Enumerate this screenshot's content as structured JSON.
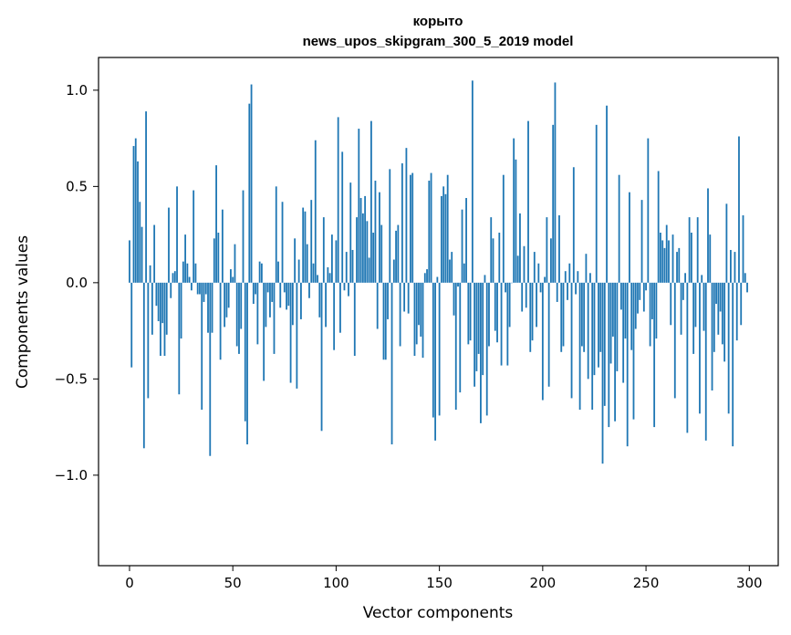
{
  "chart_data": {
    "type": "bar",
    "title": "корыто",
    "subtitle": "news_upos_skipgram_300_5_2019 model",
    "xlabel": "Vector components",
    "ylabel": "Components values",
    "xlim": [
      -15,
      314
    ],
    "ylim": [
      -1.47,
      1.17
    ],
    "xticks": [
      0,
      50,
      100,
      150,
      200,
      250,
      300
    ],
    "yticks": [
      -1.0,
      -0.5,
      0.0,
      0.5,
      1.0
    ],
    "ytick_labels": [
      "−1.0",
      "−0.5",
      "0.0",
      "0.5",
      "1.0"
    ],
    "bar_color": "#1f77b4",
    "grid": false,
    "values": [
      0.22,
      -0.44,
      0.71,
      0.75,
      0.63,
      0.42,
      0.29,
      -0.86,
      0.89,
      -0.6,
      0.09,
      -0.27,
      0.3,
      -0.12,
      -0.2,
      -0.38,
      -0.21,
      -0.38,
      -0.27,
      0.39,
      -0.08,
      0.05,
      0.06,
      0.5,
      -0.58,
      -0.29,
      0.11,
      0.25,
      0.1,
      0.03,
      -0.04,
      0.48,
      0.1,
      -0.06,
      -0.06,
      -0.66,
      -0.1,
      -0.06,
      -0.26,
      -0.9,
      -0.26,
      0.23,
      0.61,
      0.26,
      -0.4,
      0.38,
      -0.23,
      -0.18,
      -0.13,
      0.07,
      0.03,
      0.2,
      -0.33,
      -0.37,
      -0.24,
      0.48,
      -0.72,
      -0.84,
      0.93,
      1.03,
      -0.11,
      -0.06,
      -0.32,
      0.11,
      0.1,
      -0.51,
      -0.23,
      -0.05,
      -0.18,
      -0.1,
      -0.37,
      0.5,
      0.11,
      -0.13,
      0.42,
      -0.05,
      -0.14,
      -0.12,
      -0.52,
      -0.22,
      0.23,
      -0.55,
      0.12,
      -0.19,
      0.39,
      0.37,
      0.2,
      -0.08,
      0.43,
      0.1,
      0.74,
      0.04,
      -0.18,
      -0.77,
      0.34,
      -0.23,
      0.08,
      0.05,
      0.25,
      -0.35,
      0.22,
      0.86,
      -0.26,
      0.68,
      -0.04,
      0.16,
      -0.07,
      0.52,
      0.17,
      -0.38,
      0.34,
      0.8,
      0.44,
      0.36,
      0.45,
      0.32,
      0.13,
      0.84,
      0.26,
      0.53,
      -0.24,
      0.47,
      0.3,
      -0.4,
      -0.4,
      -0.19,
      0.59,
      -0.84,
      0.12,
      0.27,
      0.3,
      -0.33,
      0.62,
      -0.15,
      0.7,
      -0.16,
      0.56,
      0.57,
      -0.38,
      -0.32,
      -0.22,
      -0.28,
      -0.39,
      0.05,
      0.07,
      0.53,
      0.57,
      -0.7,
      -0.82,
      0.03,
      -0.69,
      0.45,
      0.5,
      0.46,
      0.56,
      0.12,
      0.16,
      -0.17,
      -0.66,
      -0.02,
      -0.57,
      0.38,
      0.1,
      0.44,
      -0.32,
      -0.3,
      1.05,
      -0.54,
      -0.46,
      -0.37,
      -0.73,
      -0.48,
      0.04,
      -0.69,
      -0.33,
      0.34,
      0.23,
      -0.25,
      -0.31,
      0.26,
      -0.43,
      0.56,
      -0.05,
      -0.43,
      -0.23,
      0.0,
      0.75,
      0.64,
      0.14,
      0.36,
      -0.15,
      0.19,
      -0.13,
      0.84,
      -0.36,
      -0.3,
      0.16,
      -0.23,
      0.1,
      -0.05,
      -0.61,
      0.03,
      0.34,
      -0.54,
      0.23,
      0.82,
      1.04,
      -0.1,
      0.35,
      -0.36,
      -0.33,
      0.06,
      -0.09,
      0.1,
      -0.6,
      0.6,
      -0.06,
      0.06,
      -0.66,
      -0.33,
      -0.36,
      0.15,
      -0.5,
      0.05,
      -0.66,
      -0.48,
      0.82,
      -0.44,
      -0.36,
      -0.94,
      -0.64,
      0.92,
      -0.75,
      -0.42,
      -0.28,
      -0.72,
      -0.46,
      0.56,
      -0.14,
      -0.52,
      -0.29,
      -0.85,
      0.47,
      -0.35,
      -0.71,
      -0.24,
      -0.16,
      -0.09,
      0.43,
      -0.15,
      -0.04,
      0.75,
      -0.33,
      -0.19,
      -0.75,
      -0.29,
      0.58,
      0.26,
      0.22,
      0.18,
      0.3,
      0.22,
      -0.22,
      0.25,
      -0.6,
      0.16,
      0.18,
      -0.27,
      -0.09,
      0.05,
      -0.78,
      0.34,
      0.26,
      -0.37,
      -0.23,
      0.34,
      -0.68,
      0.04,
      -0.25,
      -0.82,
      0.49,
      0.25,
      -0.56,
      -0.36,
      -0.11,
      -0.27,
      -0.15,
      -0.32,
      -0.41,
      0.41,
      -0.68,
      0.17,
      -0.85,
      0.16,
      -0.3,
      0.76,
      -0.22,
      0.35,
      0.05,
      -0.05
    ]
  }
}
